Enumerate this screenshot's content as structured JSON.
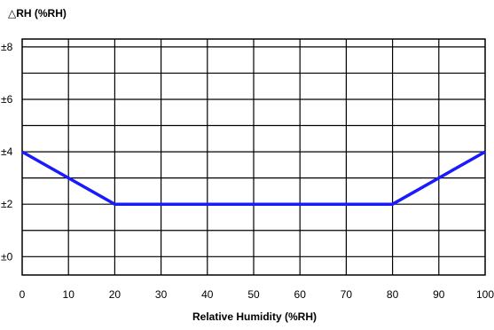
{
  "chart_data": {
    "type": "line",
    "title": "",
    "ylabel": "△RH (%RH)",
    "xlabel": "Relative Humidity (%RH)",
    "xlim": [
      0,
      100
    ],
    "ylim": [
      -0.7,
      8.3
    ],
    "x_ticks": [
      0,
      10,
      20,
      30,
      40,
      50,
      60,
      70,
      80,
      90,
      100
    ],
    "x_tick_labels": [
      "0",
      "10",
      "20",
      "30",
      "40",
      "50",
      "60",
      "70",
      "80",
      "90",
      "100"
    ],
    "y_ticks": [
      0,
      2,
      4,
      6,
      8
    ],
    "y_tick_labels": [
      "±0",
      "±2",
      "±4",
      "±6",
      "±8"
    ],
    "grid": true,
    "series": [
      {
        "color": "#1a1aff",
        "x": [
          0,
          20,
          80,
          100
        ],
        "y": [
          4,
          2,
          2,
          4
        ]
      }
    ]
  }
}
